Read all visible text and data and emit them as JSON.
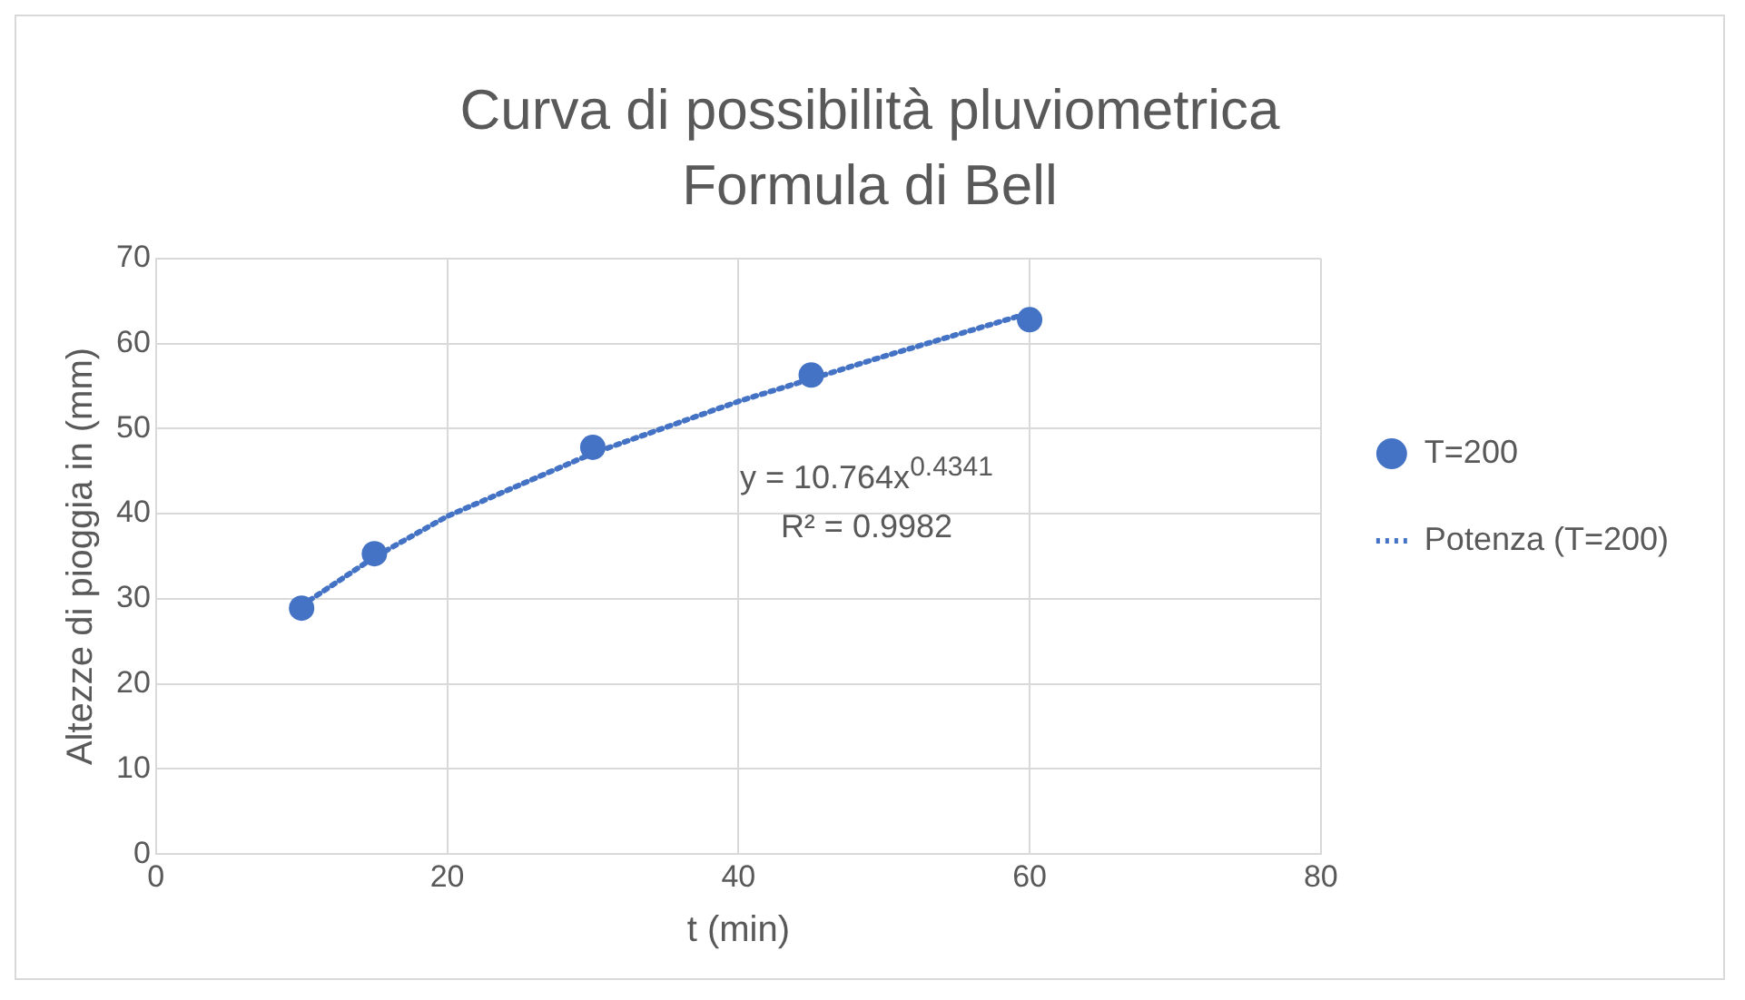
{
  "chart_data": {
    "type": "scatter",
    "title": "Curva di possibilità pluviometrica",
    "subtitle": "Formula di Bell",
    "xlabel": "t (min)",
    "ylabel": "Altezze di pioggia in (mm)",
    "series": [
      {
        "name": "T=200",
        "type": "scatter",
        "color": "#4472c4",
        "x": [
          10,
          15,
          30,
          45,
          60
        ],
        "values": [
          28.9,
          35.3,
          47.8,
          56.3,
          62.8
        ],
        "marker": "circle"
      },
      {
        "name": "Potenza (T=200)",
        "type": "line",
        "color": "#4472c4",
        "x": [
          10,
          15,
          20,
          30,
          40,
          50,
          60
        ],
        "values": [
          29.2,
          34.9,
          39.7,
          47.1,
          53.2,
          58.5,
          63.6
        ],
        "line_style": "dotted",
        "marker": "none"
      }
    ],
    "xlim": [
      0,
      80
    ],
    "xticks": [
      0,
      20,
      40,
      60,
      80
    ],
    "ylim": [
      0,
      70
    ],
    "yticks": [
      0,
      10,
      20,
      30,
      40,
      50,
      60,
      70
    ],
    "grid": true,
    "legend": "right",
    "annotations": [
      "y = 10.764x$^{0.4341}$",
      "R² = 0.9982"
    ]
  }
}
